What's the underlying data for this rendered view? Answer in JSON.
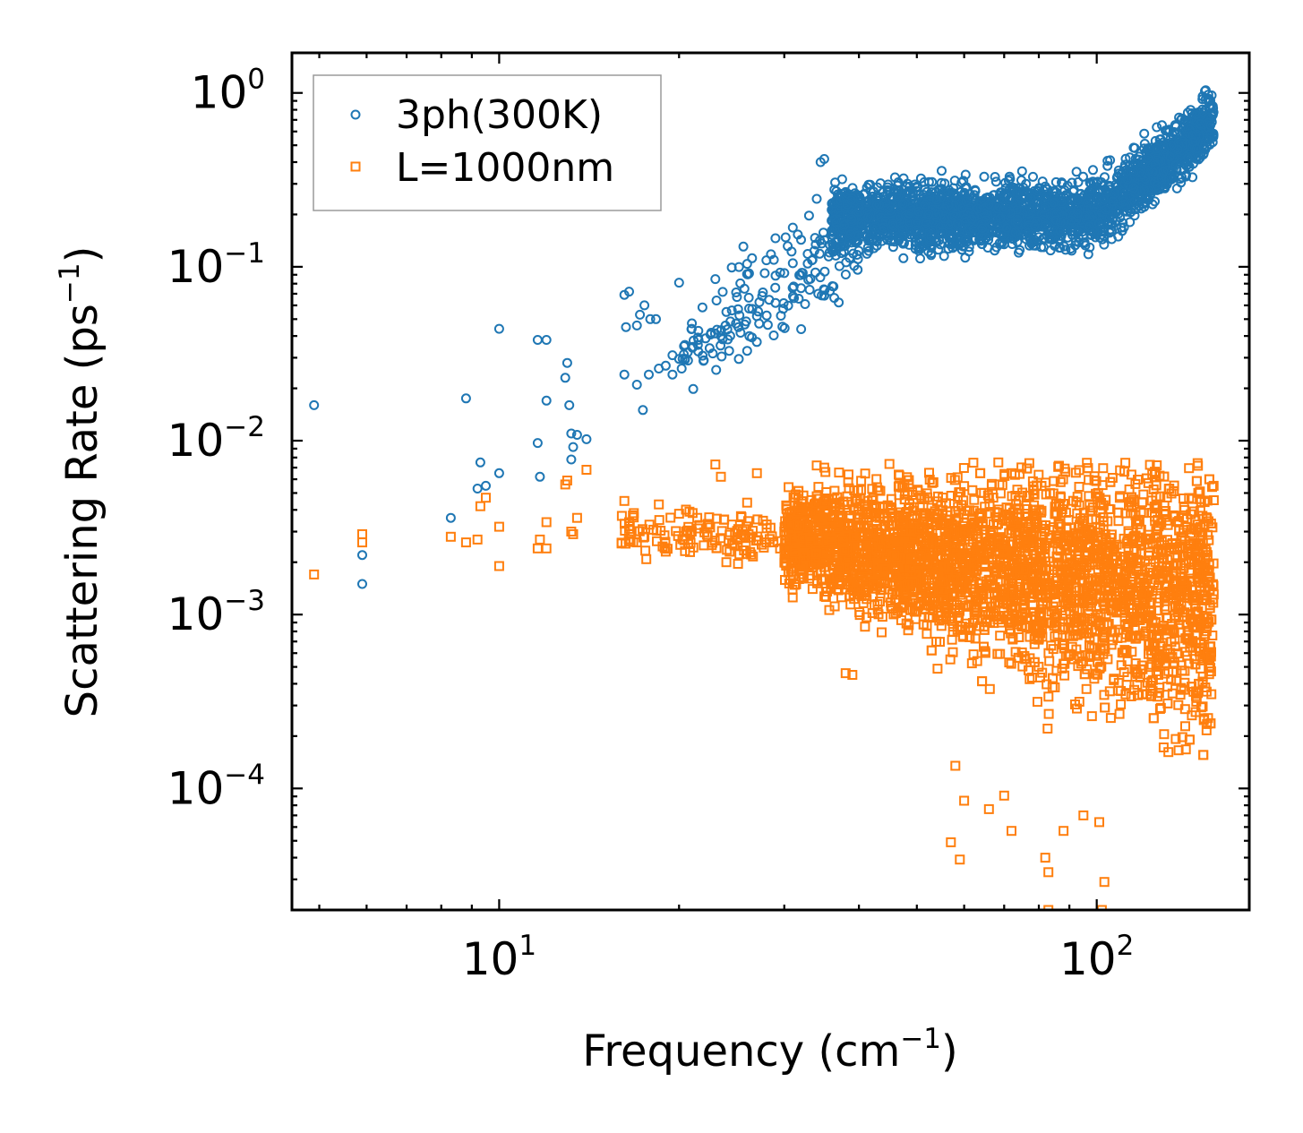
{
  "chart_data": {
    "type": "scatter",
    "title": "",
    "xlabel": "Frequency (cm",
    "xlabel_sup": "−1",
    "xlabel_close": ")",
    "ylabel": "Scattering Rate (ps",
    "ylabel_sup": "−1",
    "ylabel_close": ")",
    "xscale": "log",
    "yscale": "log",
    "xlim": [
      4.5,
      180
    ],
    "ylim": [
      2e-05,
      1.7
    ],
    "x_ticks": [
      {
        "value": 10,
        "base": "10",
        "exp": "1"
      },
      {
        "value": 100,
        "base": "10",
        "exp": "2"
      }
    ],
    "y_ticks": [
      {
        "value": 1,
        "base": "10",
        "exp": "0"
      },
      {
        "value": 0.1,
        "base": "10",
        "exp": "−1"
      },
      {
        "value": 0.01,
        "base": "10",
        "exp": "−2"
      },
      {
        "value": 0.001,
        "base": "10",
        "exp": "−3"
      },
      {
        "value": 0.0001,
        "base": "10",
        "exp": "−4"
      }
    ],
    "legend_position": "top-left",
    "series": [
      {
        "name": "3ph(300K)",
        "color": "#1f77b4",
        "marker": "circle",
        "points": [
          [
            4.9,
            0.016
          ],
          [
            5.9,
            0.0022
          ],
          [
            5.9,
            0.0015
          ],
          [
            8.3,
            0.0036
          ],
          [
            8.8,
            0.0175
          ],
          [
            9.2,
            0.0053
          ],
          [
            9.3,
            0.0075
          ],
          [
            9.5,
            0.0055
          ],
          [
            10.0,
            0.044
          ],
          [
            10.0,
            0.0065
          ],
          [
            11.6,
            0.038
          ],
          [
            11.6,
            0.0097
          ],
          [
            11.7,
            0.0062
          ],
          [
            12.0,
            0.038
          ],
          [
            12.0,
            0.017
          ],
          [
            13.0,
            0.028
          ],
          [
            12.9,
            0.023
          ],
          [
            13.1,
            0.016
          ],
          [
            13.2,
            0.011
          ],
          [
            13.3,
            0.0092
          ],
          [
            13.2,
            0.0078
          ],
          [
            13.5,
            0.0108
          ],
          [
            14.0,
            0.0102
          ],
          [
            16.2,
            0.069
          ],
          [
            16.3,
            0.045
          ],
          [
            16.5,
            0.072
          ],
          [
            16.2,
            0.024
          ],
          [
            17.0,
            0.046
          ],
          [
            17.2,
            0.053
          ],
          [
            17.0,
            0.021
          ],
          [
            17.5,
            0.06
          ],
          [
            17.4,
            0.015
          ],
          [
            17.9,
            0.05
          ],
          [
            17.8,
            0.024
          ],
          [
            18.3,
            0.05
          ],
          [
            18.5,
            0.026
          ],
          [
            19.0,
            0.027
          ],
          [
            19.5,
            0.024
          ],
          [
            20.0,
            0.081
          ],
          [
            19.5,
            0.031
          ],
          [
            20.2,
            0.026
          ],
          [
            21.0,
            0.044
          ],
          [
            22.0,
            0.029
          ],
          [
            22.5,
            0.034
          ],
          [
            23.0,
            0.085
          ],
          [
            23.5,
            0.04
          ],
          [
            24.0,
            0.055
          ],
          [
            24.5,
            0.099
          ],
          [
            25.0,
            0.067
          ],
          [
            26.0,
            0.104
          ],
          [
            26.5,
            0.112
          ],
          [
            27.0,
            0.052
          ],
          [
            28.0,
            0.109
          ],
          [
            28.5,
            0.118
          ],
          [
            29.0,
            0.146
          ],
          [
            30.0,
            0.092
          ],
          [
            31.0,
            0.168
          ],
          [
            32.0,
            0.143
          ],
          [
            33.0,
            0.197
          ],
          [
            34.0,
            0.246
          ],
          [
            35.0,
            0.417
          ],
          [
            34.5,
            0.4
          ],
          [
            36.0,
            0.161
          ]
        ]
      },
      {
        "name": "L=1000nm",
        "color": "#ff7f0e",
        "marker": "square",
        "points": [
          [
            4.9,
            0.0017
          ],
          [
            5.9,
            0.0029
          ],
          [
            5.9,
            0.0026
          ],
          [
            8.3,
            0.0028
          ],
          [
            8.8,
            0.0026
          ],
          [
            9.2,
            0.0027
          ],
          [
            9.3,
            0.0042
          ],
          [
            9.5,
            0.0047
          ],
          [
            10.0,
            0.0032
          ],
          [
            10.0,
            0.0019
          ],
          [
            11.6,
            0.0024
          ],
          [
            11.7,
            0.0027
          ],
          [
            12.0,
            0.0034
          ],
          [
            12.0,
            0.0024
          ],
          [
            12.9,
            0.0056
          ],
          [
            13.0,
            0.0059
          ],
          [
            13.2,
            0.003
          ],
          [
            13.3,
            0.0029
          ],
          [
            13.5,
            0.0036
          ],
          [
            14.0,
            0.0068
          ],
          [
            16.2,
            0.0045
          ],
          [
            16.5,
            0.0034
          ],
          [
            17.0,
            0.0026
          ],
          [
            17.5,
            0.0028
          ],
          [
            18.5,
            0.0043
          ],
          [
            19.0,
            0.0023
          ],
          [
            20.0,
            0.0038
          ],
          [
            21.0,
            0.003
          ],
          [
            22.0,
            0.0025
          ],
          [
            23.0,
            0.0073
          ],
          [
            23.5,
            0.0062
          ],
          [
            24.0,
            0.002
          ],
          [
            26.0,
            0.0044
          ],
          [
            27.0,
            0.0065
          ],
          [
            28.0,
            0.0026
          ],
          [
            30.0,
            0.003
          ],
          [
            34.0,
            0.0072
          ],
          [
            35.0,
            0.007
          ],
          [
            38.0,
            0.00046
          ],
          [
            39.0,
            0.00045
          ],
          [
            58.0,
            0.000135
          ],
          [
            60.0,
            8.5e-05
          ],
          [
            57.0,
            4.9e-05
          ],
          [
            59.0,
            3.9e-05
          ],
          [
            66.0,
            7.6e-05
          ],
          [
            70.0,
            9.1e-05
          ],
          [
            72.0,
            5.7e-05
          ],
          [
            82.0,
            4e-05
          ],
          [
            83.0,
            3.3e-05
          ],
          [
            88.0,
            5.7e-05
          ],
          [
            95.0,
            7e-05
          ],
          [
            101.0,
            6.4e-05
          ],
          [
            103.0,
            2.9e-05
          ],
          [
            102.0,
            2e-05
          ],
          [
            83.0,
            2e-05
          ]
        ]
      }
    ]
  }
}
